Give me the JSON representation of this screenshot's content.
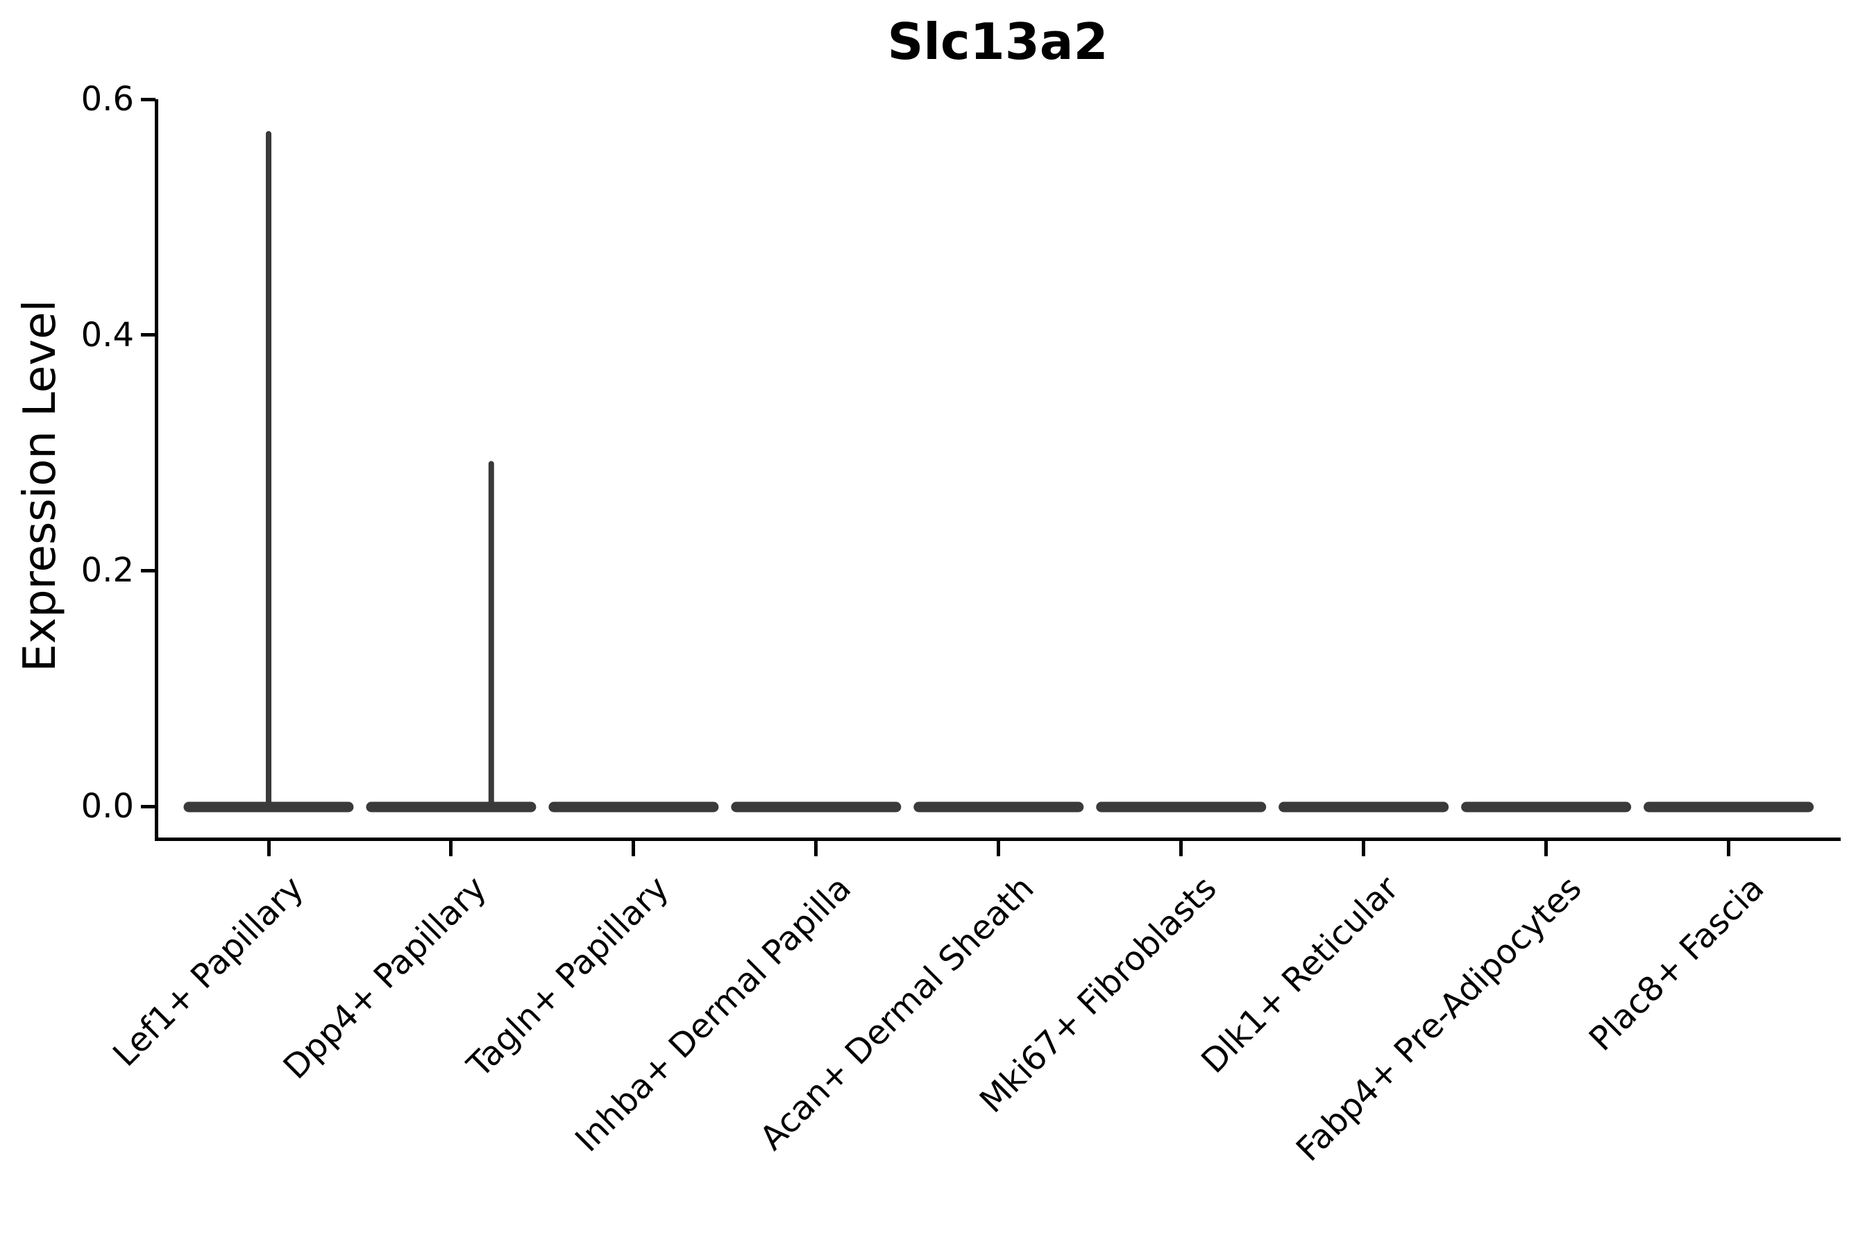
{
  "chart_data": {
    "type": "violin",
    "title": "Slc13a2",
    "xlabel": "",
    "ylabel": "Expression Level",
    "ylim": [
      0.0,
      0.6
    ],
    "yticks": [
      0.0,
      0.2,
      0.4,
      0.6
    ],
    "ytick_labels": [
      "0.0",
      "0.2",
      "0.4",
      "0.6"
    ],
    "categories": [
      "Lef1+ Papillary",
      "Dpp4+ Papillary",
      "Tagln+ Papillary",
      "Inhba+ Dermal Papilla",
      "Acan+ Dermal Sheath",
      "Mki67+ Fibroblasts",
      "Dlk1+ Reticular",
      "Fabp4+ Pre-Adipocytes",
      "Plac8+ Fascia"
    ],
    "violins": [
      {
        "label": "Lef1+ Papillary",
        "distribution_mode": 0.0,
        "max_value": 0.573,
        "spike_offset_frac": 0.0
      },
      {
        "label": "Dpp4+ Papillary",
        "distribution_mode": 0.0,
        "max_value": 0.293,
        "spike_offset_frac": 0.22
      },
      {
        "label": "Tagln+ Papillary",
        "distribution_mode": 0.0,
        "max_value": 0.0,
        "spike_offset_frac": 0.0
      },
      {
        "label": "Inhba+ Dermal Papilla",
        "distribution_mode": 0.0,
        "max_value": 0.0,
        "spike_offset_frac": 0.0
      },
      {
        "label": "Acan+ Dermal Sheath",
        "distribution_mode": 0.0,
        "max_value": 0.0,
        "spike_offset_frac": 0.0
      },
      {
        "label": "Mki67+ Fibroblasts",
        "distribution_mode": 0.0,
        "max_value": 0.0,
        "spike_offset_frac": 0.0
      },
      {
        "label": "Dlk1+ Reticular",
        "distribution_mode": 0.0,
        "max_value": 0.0,
        "spike_offset_frac": 0.0
      },
      {
        "label": "Fabp4+ Pre-Adipocytes",
        "distribution_mode": 0.0,
        "max_value": 0.0,
        "spike_offset_frac": 0.0
      },
      {
        "label": "Plac8+ Fascia",
        "distribution_mode": 0.0,
        "max_value": 0.0,
        "spike_offset_frac": 0.0
      }
    ],
    "legend_position": "none",
    "grid": false,
    "colors": {
      "violin_fill": "#3a3a3a",
      "axis": "#000000",
      "text": "#000000",
      "background": "#ffffff"
    }
  }
}
